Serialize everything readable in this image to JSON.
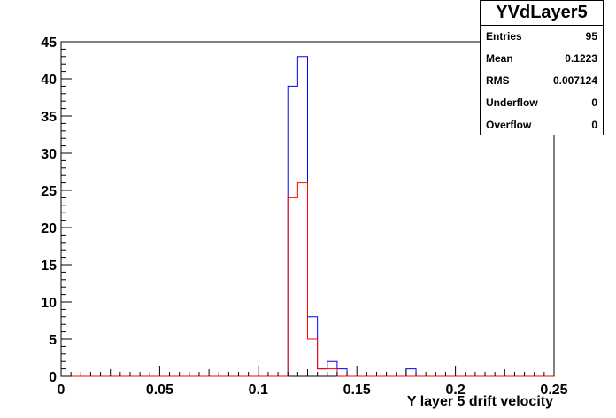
{
  "chart_data": {
    "type": "bar",
    "title": "",
    "xlabel": "Y layer 5 drift velocity",
    "ylabel": "",
    "xlim": [
      0,
      0.25
    ],
    "ylim": [
      0,
      45
    ],
    "x_ticks": [
      "0",
      "0.05",
      "0.1",
      "0.15",
      "0.2",
      "0.25"
    ],
    "x_tick_values": [
      0,
      0.05,
      0.1,
      0.15,
      0.2,
      0.25
    ],
    "y_ticks": [
      "0",
      "5",
      "10",
      "15",
      "20",
      "25",
      "30",
      "35",
      "40",
      "45"
    ],
    "y_tick_values": [
      0,
      5,
      10,
      15,
      20,
      25,
      30,
      35,
      40,
      45
    ],
    "bin_width": 0.005,
    "grid": false,
    "series": [
      {
        "color": "#0000ff",
        "bins": [
          {
            "x": 0.115,
            "value": 39
          },
          {
            "x": 0.12,
            "value": 43
          },
          {
            "x": 0.125,
            "value": 8
          },
          {
            "x": 0.13,
            "value": 1
          },
          {
            "x": 0.135,
            "value": 2
          },
          {
            "x": 0.14,
            "value": 1
          },
          {
            "x": 0.175,
            "value": 1
          }
        ]
      },
      {
        "color": "#ff0000",
        "bins": [
          {
            "x": 0.115,
            "value": 24
          },
          {
            "x": 0.12,
            "value": 26
          },
          {
            "x": 0.125,
            "value": 5
          },
          {
            "x": 0.13,
            "value": 1
          },
          {
            "x": 0.135,
            "value": 1
          }
        ]
      }
    ]
  },
  "stats": {
    "title": "YVdLayer5",
    "rows": [
      {
        "label": "Entries",
        "value": "95"
      },
      {
        "label": "Mean",
        "value": "0.1223"
      },
      {
        "label": "RMS",
        "value": "0.007124"
      },
      {
        "label": "Underflow",
        "value": "0"
      },
      {
        "label": "Overflow",
        "value": "0"
      }
    ]
  }
}
